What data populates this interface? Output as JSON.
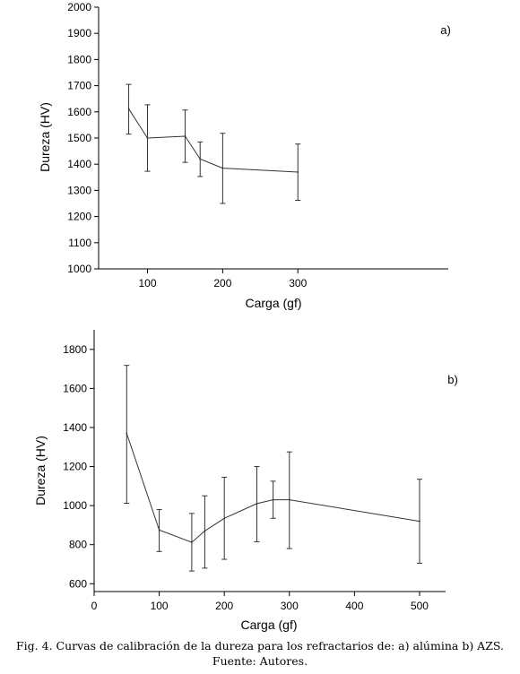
{
  "chart_data": [
    {
      "type": "line",
      "panel_label": "a)",
      "xlabel": "Carga (gf)",
      "ylabel": "Dureza (HV)",
      "xlim": [
        35,
        500
      ],
      "ylim": [
        1000,
        2000
      ],
      "xticks": [
        100,
        200,
        300
      ],
      "yticks": [
        1000,
        1100,
        1200,
        1300,
        1400,
        1500,
        1600,
        1700,
        1800,
        1900,
        2000
      ],
      "grid": false,
      "series": [
        {
          "x": [
            75,
            100,
            150,
            170,
            200,
            300
          ],
          "y": [
            1612,
            1500,
            1507,
            1420,
            1385,
            1370
          ],
          "err_low": [
            1515,
            1373,
            1407,
            1353,
            1250,
            1262
          ],
          "err_high": [
            1705,
            1627,
            1607,
            1485,
            1518,
            1477
          ],
          "color": "#333333"
        }
      ]
    },
    {
      "type": "line",
      "panel_label": "b)",
      "xlabel": "Carga (gf)",
      "ylabel": "Dureza (HV)",
      "xlim": [
        0,
        540
      ],
      "ylim": [
        560,
        1900
      ],
      "xticks": [
        0,
        100,
        200,
        300,
        400,
        500
      ],
      "yticks": [
        600,
        800,
        1000,
        1200,
        1400,
        1600,
        1800
      ],
      "grid": false,
      "series": [
        {
          "x": [
            50,
            100,
            150,
            170,
            200,
            250,
            275,
            300,
            500
          ],
          "y": [
            1370,
            875,
            812,
            870,
            935,
            1010,
            1030,
            1030,
            920
          ],
          "err_low": [
            1012,
            765,
            665,
            680,
            725,
            815,
            935,
            780,
            705
          ],
          "err_high": [
            1718,
            980,
            960,
            1050,
            1145,
            1200,
            1125,
            1275,
            1135
          ],
          "color": "#333333"
        }
      ]
    }
  ],
  "caption": {
    "line1": "Fig. 4. Curvas de calibración de la dureza para los refractarios de: a) alúmina b) AZS.",
    "line2": "Fuente: Autores."
  }
}
